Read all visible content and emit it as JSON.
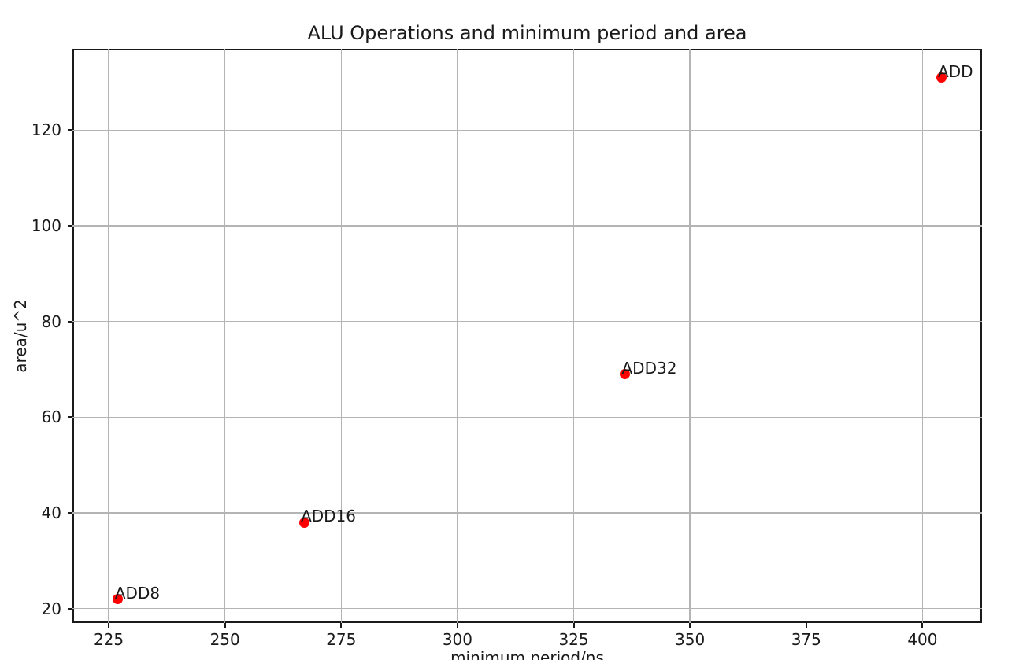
{
  "figure": {
    "background": "#ffffff"
  },
  "chart_data": {
    "type": "scatter",
    "title": "ALU Operations and minimum period and area",
    "xlabel": "minimum period/ns",
    "ylabel": "area/u^2",
    "xlim": [
      217.2,
      412.8
    ],
    "ylim": [
      17,
      137
    ],
    "xticks": [
      225,
      250,
      275,
      300,
      325,
      350,
      375,
      400
    ],
    "yticks": [
      20,
      40,
      60,
      80,
      100,
      120
    ],
    "grid": true,
    "legend": "none",
    "marker": "circle",
    "marker_color": "#ff0000",
    "grid_color": "#b4b4b4",
    "points": [
      {
        "label": "ADD8",
        "x": 227,
        "y": 22
      },
      {
        "label": "ADD16",
        "x": 267,
        "y": 38
      },
      {
        "label": "ADD32",
        "x": 336,
        "y": 69
      },
      {
        "label": "ADD",
        "x": 404,
        "y": 131
      }
    ]
  }
}
